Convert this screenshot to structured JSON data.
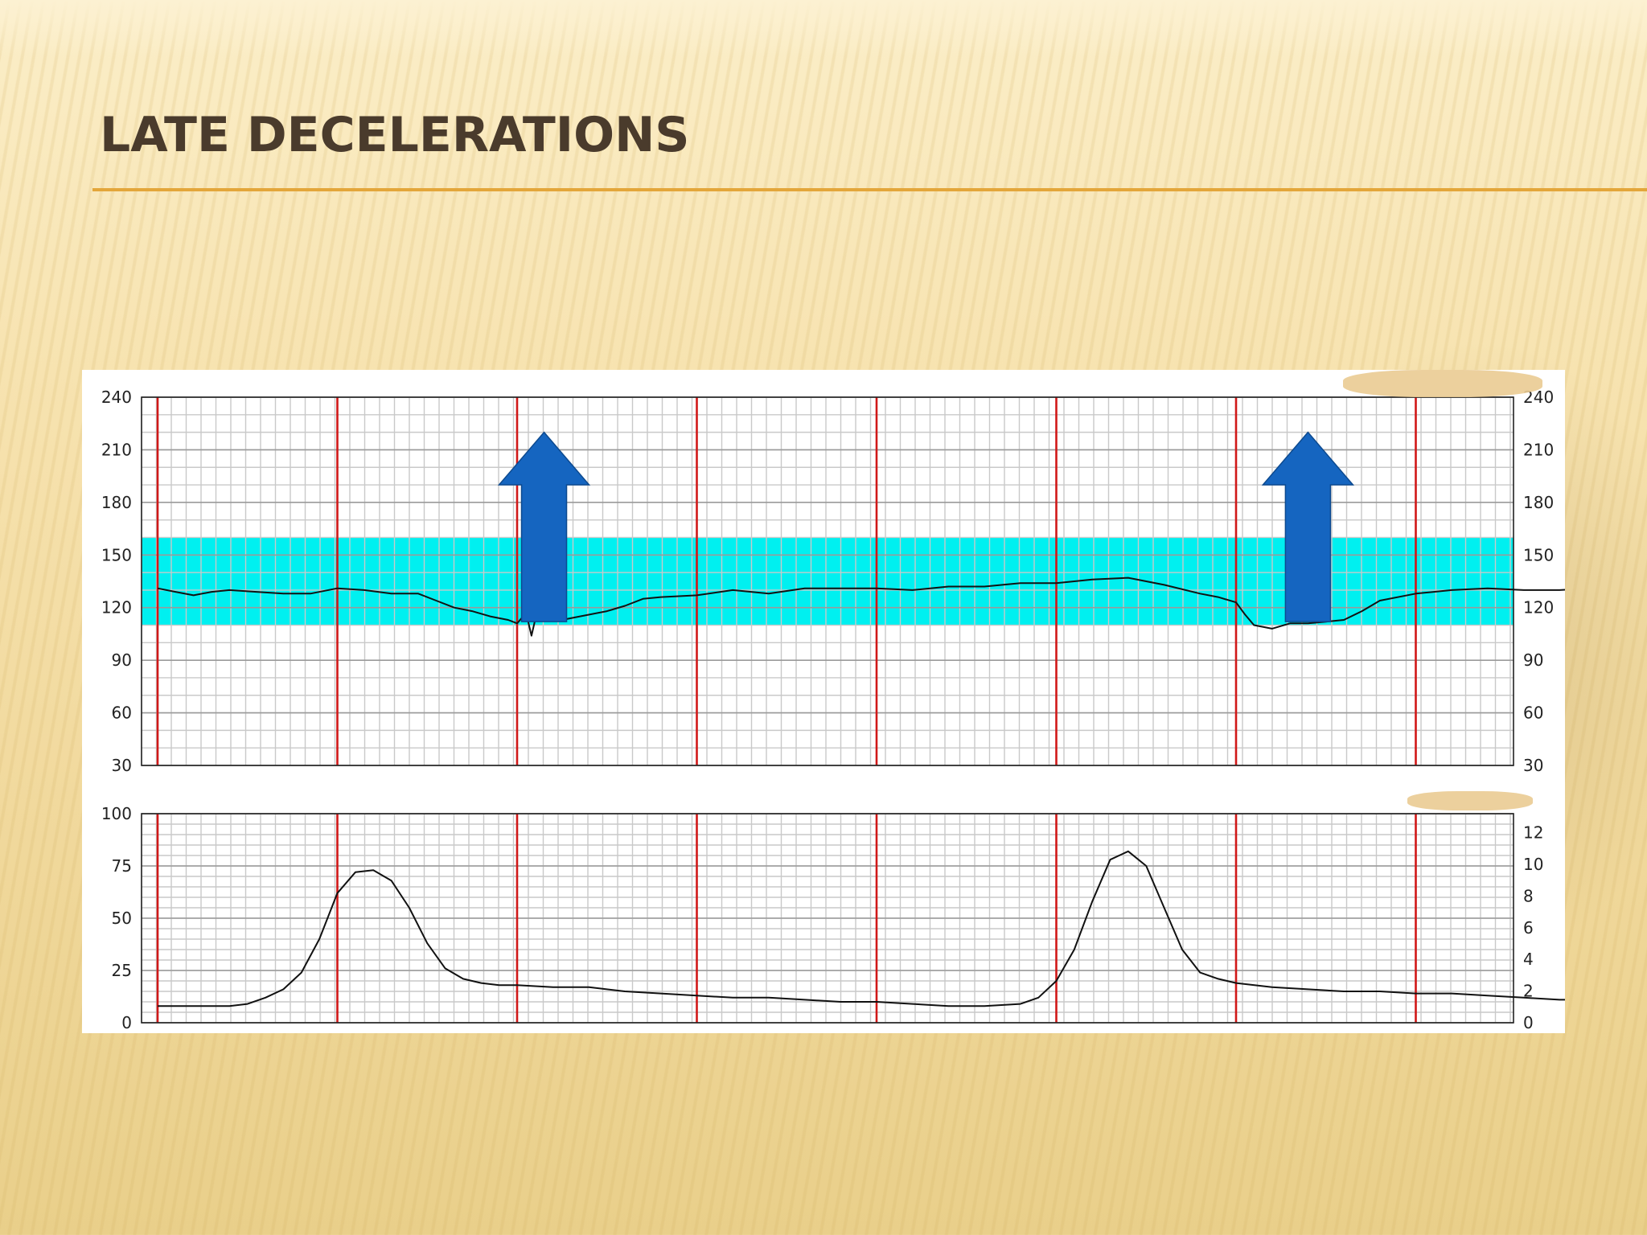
{
  "slide": {
    "title": "LATE DECELERATIONS"
  },
  "colors": {
    "title_text": "#4a3b2c",
    "title_rule": "#e3a63a",
    "normal_band": "#00f0f0",
    "minute_line": "#d01818",
    "trace": "#111111",
    "arrow": "#1565c0",
    "grid": "#c9c9c9"
  },
  "chart_data": [
    {
      "type": "line",
      "name": "fetal-heart-rate",
      "ylim": [
        30,
        240
      ],
      "yticks": [
        240,
        210,
        180,
        150,
        120,
        90,
        60,
        30
      ],
      "yticks_right": [
        240,
        210,
        180,
        150,
        120,
        90,
        60,
        30
      ],
      "grid": true,
      "normal_band": [
        110,
        160
      ],
      "time_minutes": [
        0,
        8
      ],
      "minute_markers": [
        0,
        1,
        2,
        3,
        4,
        5,
        6,
        7
      ],
      "arrows_at_minute": [
        2.15,
        6.4
      ],
      "series": [
        {
          "x": [
            0,
            0.1,
            0.2,
            0.3,
            0.4,
            0.55,
            0.7,
            0.85,
            1.0,
            1.15,
            1.3,
            1.45,
            1.55,
            1.65,
            1.75,
            1.85,
            1.95,
            2.0,
            2.05,
            2.08,
            2.1,
            2.15,
            2.25,
            2.35,
            2.5,
            2.6,
            2.7,
            2.8,
            3.0,
            3.2,
            3.4,
            3.6,
            3.8,
            4.0,
            4.2,
            4.4,
            4.6,
            4.8,
            5.0,
            5.2,
            5.4,
            5.6,
            5.8,
            5.9,
            6.0,
            6.05,
            6.1,
            6.2,
            6.3,
            6.4,
            6.5,
            6.6,
            6.7,
            6.8,
            7.0,
            7.2,
            7.4,
            7.6,
            7.8,
            7.95
          ],
          "values": [
            131,
            129,
            127,
            129,
            130,
            129,
            128,
            128,
            131,
            130,
            128,
            128,
            124,
            120,
            118,
            115,
            113,
            111,
            117,
            104,
            113,
            114,
            113,
            115,
            118,
            121,
            125,
            126,
            127,
            130,
            128,
            131,
            131,
            131,
            130,
            132,
            132,
            134,
            134,
            136,
            137,
            133,
            128,
            126,
            123,
            116,
            110,
            108,
            111,
            111,
            112,
            113,
            118,
            124,
            128,
            130,
            131,
            130,
            130,
            131
          ]
        }
      ]
    },
    {
      "type": "line",
      "name": "uterine-contractions",
      "ylim": [
        0,
        100
      ],
      "yticks": [
        100,
        75,
        50,
        25,
        0
      ],
      "yticks_right": [
        12,
        10,
        8,
        6,
        4,
        2,
        0
      ],
      "grid": true,
      "time_minutes": [
        0,
        8
      ],
      "minute_markers": [
        0,
        1,
        2,
        3,
        4,
        5,
        6,
        7
      ],
      "series": [
        {
          "x": [
            0,
            0.2,
            0.4,
            0.5,
            0.6,
            0.7,
            0.8,
            0.9,
            1.0,
            1.1,
            1.2,
            1.3,
            1.4,
            1.5,
            1.6,
            1.7,
            1.8,
            1.9,
            2.0,
            2.2,
            2.4,
            2.6,
            2.8,
            3.0,
            3.2,
            3.4,
            3.6,
            3.8,
            4.0,
            4.2,
            4.4,
            4.6,
            4.8,
            4.9,
            5.0,
            5.1,
            5.2,
            5.3,
            5.4,
            5.5,
            5.6,
            5.7,
            5.8,
            5.9,
            6.0,
            6.2,
            6.4,
            6.6,
            6.8,
            7.0,
            7.2,
            7.4,
            7.6,
            7.8,
            7.95
          ],
          "values": [
            8,
            8,
            8,
            9,
            12,
            16,
            24,
            40,
            62,
            72,
            73,
            68,
            55,
            38,
            26,
            21,
            19,
            18,
            18,
            17,
            17,
            15,
            14,
            13,
            12,
            12,
            11,
            10,
            10,
            9,
            8,
            8,
            9,
            12,
            20,
            35,
            58,
            78,
            82,
            75,
            55,
            35,
            24,
            21,
            19,
            17,
            16,
            15,
            15,
            14,
            14,
            13,
            12,
            11,
            11
          ]
        }
      ]
    }
  ]
}
